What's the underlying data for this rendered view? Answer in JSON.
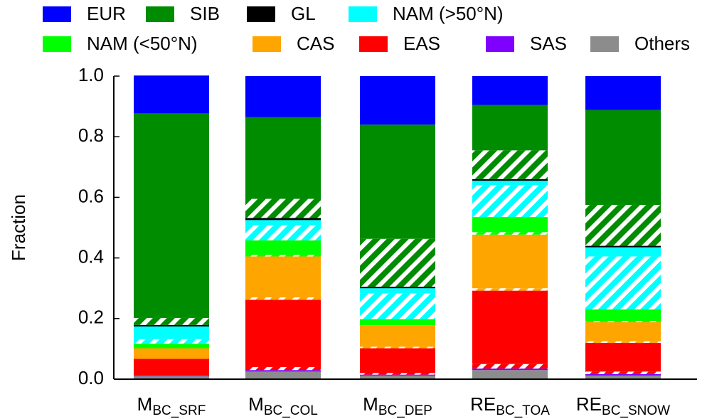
{
  "chart_data": {
    "type": "stacked_bar",
    "y_label": "Fraction",
    "categories": [
      "M",
      "M",
      "M",
      "RE",
      "RE"
    ],
    "category_subscripts": [
      "BC_SRF",
      "BC_COL",
      "BC_DEP",
      "BC_TOA",
      "BC_SNOW"
    ],
    "ylim": [
      0,
      1.0
    ],
    "yticks": [
      {
        "value": 0,
        "label": "0.0"
      },
      0.2,
      0.4,
      0.6,
      0.8,
      {
        "value": 1.0,
        "label": "1.0"
      }
    ],
    "series": [
      {
        "name": "Others",
        "color": "#8c8c8c",
        "hatched": [
          0,
          0,
          0,
          0,
          0
        ],
        "values": [
          0.01,
          0.025,
          0.012,
          0.03,
          0.012
        ]
      },
      {
        "name": "SAS",
        "color": "#7f00ff",
        "hatched": [
          0,
          0,
          0,
          0,
          0
        ],
        "values": [
          0.002,
          0.005,
          0.003,
          0.005,
          0.005
        ]
      },
      {
        "name": "EAS",
        "color": "#ff0000",
        "hatched": [
          0,
          0.01,
          0.005,
          0.015,
          0.008
        ],
        "values": [
          0.055,
          0.222,
          0.082,
          0.242,
          0.095
        ]
      },
      {
        "name": "CAS",
        "color": "#ffa500",
        "hatched": [
          0,
          0.008,
          0.005,
          0.008,
          0.005
        ],
        "values": [
          0.035,
          0.135,
          0.071,
          0.177,
          0.063
        ]
      },
      {
        "name": "NAM (<50°N)",
        "color": "#00ff00",
        "hatched": [
          0,
          0.005,
          0,
          0.008,
          0.004
        ],
        "values": [
          0.015,
          0.048,
          0.02,
          0.05,
          0.038
        ]
      },
      {
        "name": "NAM (>50°N)",
        "color": "#00ffff",
        "hatched": [
          0.015,
          0.05,
          0.085,
          0.105,
          0.175
        ],
        "values": [
          0.042,
          0.017,
          0.017,
          0.015,
          0.03
        ]
      },
      {
        "name": "GL",
        "color": "#000000",
        "hatched": [
          0,
          0,
          0,
          0,
          0
        ],
        "values": [
          0.005,
          0.007,
          0.005,
          0.005,
          0.005
        ]
      },
      {
        "name": "SIB",
        "color": "#008c00",
        "hatched": [
          0.023,
          0.063,
          0.158,
          0.095,
          0.135
        ],
        "values": [
          0.675,
          0.27,
          0.377,
          0.15,
          0.313
        ]
      },
      {
        "name": "EUR",
        "color": "#0000ff",
        "hatched": [
          0,
          0,
          0,
          0,
          0
        ],
        "values": [
          0.125,
          0.135,
          0.16,
          0.095,
          0.112
        ]
      }
    ],
    "legend_order": [
      8,
      7,
      6,
      5,
      4,
      3,
      2,
      1,
      0
    ]
  }
}
